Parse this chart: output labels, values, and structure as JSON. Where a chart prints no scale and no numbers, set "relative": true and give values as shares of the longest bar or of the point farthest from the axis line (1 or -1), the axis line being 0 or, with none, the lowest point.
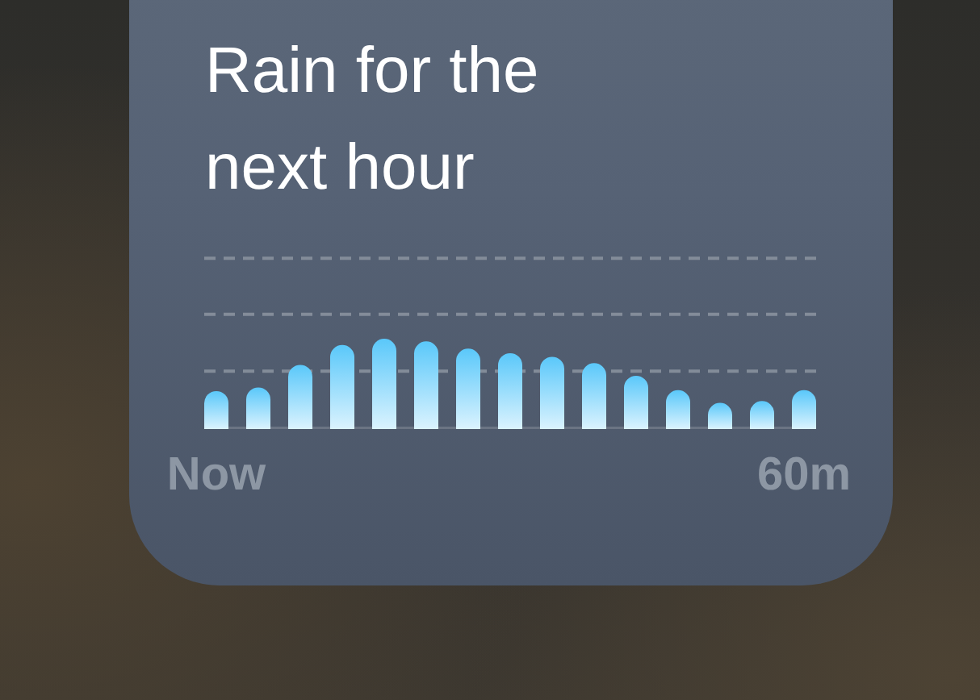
{
  "chart_data": {
    "type": "bar",
    "title": "Rain for the next hour",
    "categories": [
      "Now",
      null,
      null,
      null,
      null,
      null,
      null,
      null,
      null,
      null,
      null,
      null,
      null,
      null,
      "60m"
    ],
    "values": [
      0.42,
      0.46,
      0.71,
      0.93,
      1,
      0.97,
      0.89,
      0.84,
      0.8,
      0.73,
      0.59,
      0.43,
      0.29,
      0.31,
      0.43
    ],
    "color": "#5ac8fa",
    "relative": true,
    "ref_lines": [
      {
        "axis": "y",
        "value": 0.64,
        "color": "#838c99",
        "line_style": "dashed"
      },
      {
        "axis": "y",
        "value": 1.27,
        "color": "#838c99",
        "line_style": "dashed"
      },
      {
        "axis": "y",
        "value": 1.89,
        "color": "#838c99",
        "line_style": "dashed"
      }
    ]
  }
}
